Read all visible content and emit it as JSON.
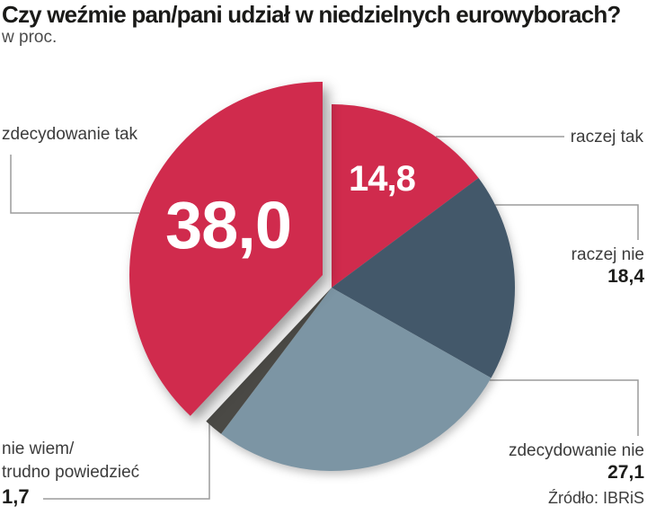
{
  "header": {
    "title": "Czy weźmie pan/pani udział w niedzielnych eurowyborach?",
    "subtitle": "w proc."
  },
  "source": "Źródło: IBRiS",
  "colors": {
    "accent_red": "#d02b4d",
    "dark_slate": "#43586a",
    "blue_gray": "#7c95a4",
    "dark_gray": "#4a4945",
    "leader_line": "#9c9c9c",
    "title_text": "#1a1a18",
    "label_text": "#3c3c3c",
    "background": "#ffffff"
  },
  "labels": {
    "left_top": "zdecydowanie tak",
    "right_top": "raczej tak",
    "nie_wiem_line1": "nie wiem/",
    "nie_wiem_line2": "trudno powiedzieć"
  },
  "chart_data": {
    "type": "pie",
    "title": "Czy weźmie pan/pani udział w niedzielnych eurowyborach?",
    "unit": "proc.",
    "start_angle_deg": 0,
    "direction": "clockwise",
    "legend_position": "callouts",
    "slices": [
      {
        "label": "raczej tak",
        "value": 14.8,
        "display": "14,8",
        "color": "#d02b4d",
        "exploded": false
      },
      {
        "label": "raczej nie",
        "value": 18.4,
        "display": "18,4",
        "color": "#43586a",
        "exploded": false
      },
      {
        "label": "zdecydowanie nie",
        "value": 27.1,
        "display": "27,1",
        "color": "#7c95a4",
        "exploded": false
      },
      {
        "label": "nie wiem/trudno powiedzieć",
        "value": 1.7,
        "display": "1,7",
        "color": "#4a4945",
        "exploded": false
      },
      {
        "label": "zdecydowanie tak",
        "value": 38.0,
        "display": "38,0",
        "color": "#d02b4d",
        "exploded": true
      }
    ]
  }
}
